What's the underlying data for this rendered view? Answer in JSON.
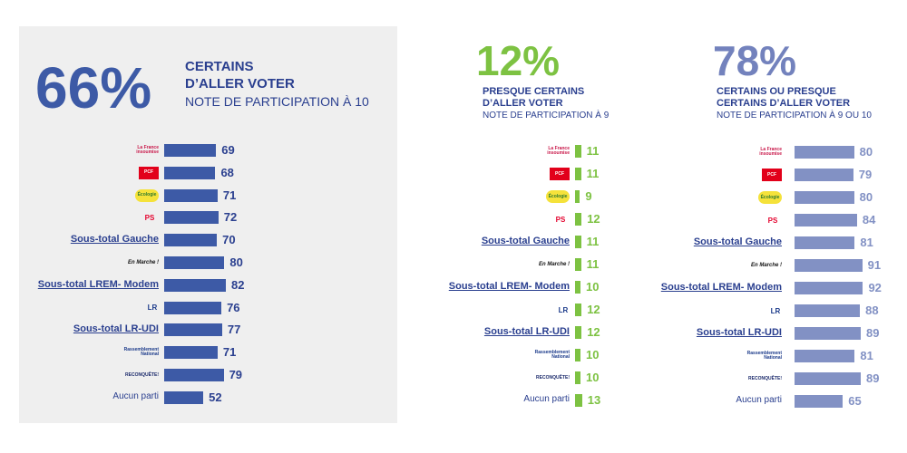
{
  "panels": [
    {
      "percent": "66%",
      "heading_line1": "CERTAINS",
      "heading_line2": "D’ALLER VOTER",
      "subheading": "NOTE DE PARTICIPATION À 10"
    },
    {
      "percent": "12%",
      "heading_line1": "PRESQUE CERTAINS",
      "heading_line2": "D’ALLER VOTER",
      "subheading": "NOTE DE PARTICIPATION À 9"
    },
    {
      "percent": "78%",
      "heading_line1": "CERTAINS OU PRESQUE",
      "heading_line2": "CERTAINS D’ALLER VOTER",
      "subheading": "NOTE DE PARTICIPATION À 9 OU 10"
    }
  ],
  "rows": [
    {
      "kind": "logo",
      "icon": "la-france-insoumise-logo",
      "logo_text": "La France insoumise"
    },
    {
      "kind": "logo",
      "icon": "pcf-logo",
      "logo_text": "PCF"
    },
    {
      "kind": "logo",
      "icon": "ecologie-logo",
      "logo_text": "Écologie"
    },
    {
      "kind": "logo",
      "icon": "ps-logo",
      "logo_text": "PS"
    },
    {
      "kind": "text",
      "label": "Sous-total Gauche",
      "underline": true
    },
    {
      "kind": "logo",
      "icon": "en-marche-logo",
      "logo_text": "En Marche !"
    },
    {
      "kind": "text",
      "label": "Sous-total LREM- Modem",
      "underline": true
    },
    {
      "kind": "logo",
      "icon": "les-republicains-logo",
      "logo_text": "LR"
    },
    {
      "kind": "text",
      "label": "Sous-total LR-UDI",
      "underline": true
    },
    {
      "kind": "logo",
      "icon": "rassemblement-national-logo",
      "logo_text": "Rassemblement National"
    },
    {
      "kind": "logo",
      "icon": "reconquete-logo",
      "logo_text": "RECONQUÊTE!"
    },
    {
      "kind": "text",
      "label": "Aucun parti",
      "underline": false
    }
  ],
  "chart_data": [
    {
      "type": "bar",
      "categories": [
        "La France insoumise",
        "PCF",
        "Écologie",
        "PS",
        "Sous-total Gauche",
        "En Marche !",
        "Sous-total LREM- Modem",
        "LR",
        "Sous-total LR-UDI",
        "Rassemblement National",
        "RECONQUÊTE!",
        "Aucun parti"
      ],
      "values": [
        69,
        68,
        71,
        72,
        70,
        80,
        82,
        76,
        77,
        71,
        79,
        52
      ],
      "color": "#3d5aa6",
      "value_color": "#2a3f8f"
    },
    {
      "type": "bar",
      "categories": [
        "La France insoumise",
        "PCF",
        "Écologie",
        "PS",
        "Sous-total Gauche",
        "En Marche !",
        "Sous-total LREM- Modem",
        "LR",
        "Sous-total LR-UDI",
        "Rassemblement National",
        "RECONQUÊTE!",
        "Aucun parti"
      ],
      "values": [
        11,
        11,
        9,
        12,
        11,
        11,
        10,
        12,
        12,
        10,
        10,
        13
      ],
      "color": "#7dc242",
      "value_color": "#7dc242"
    },
    {
      "type": "bar",
      "categories": [
        "La France insoumise",
        "PCF",
        "Écologie",
        "PS",
        "Sous-total Gauche",
        "En Marche !",
        "Sous-total LREM- Modem",
        "LR",
        "Sous-total LR-UDI",
        "Rassemblement National",
        "RECONQUÊTE!",
        "Aucun parti"
      ],
      "values": [
        80,
        79,
        80,
        84,
        81,
        91,
        92,
        88,
        89,
        81,
        89,
        65
      ],
      "color": "#8291c4",
      "value_color": "#8291c4"
    }
  ],
  "colors": {
    "panel1_pct": "#3d5aa6",
    "panel2_pct": "#7dc242",
    "panel3_pct": "#7382bd",
    "heading": "#2a3f8f"
  }
}
